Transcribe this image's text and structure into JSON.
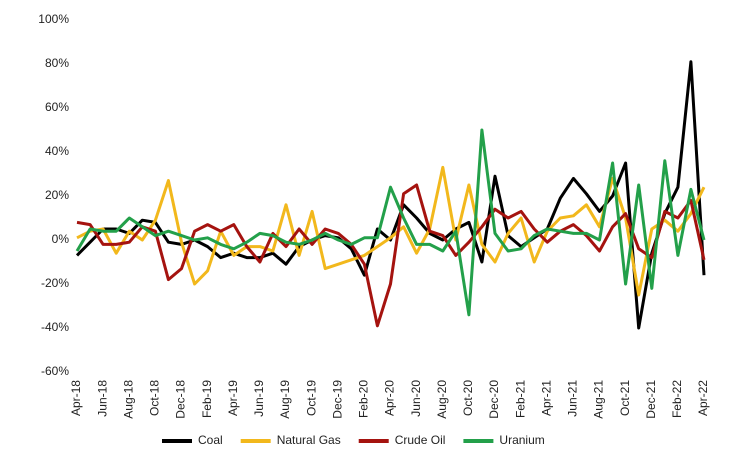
{
  "chart_data": {
    "type": "line",
    "categories": [
      "Apr-18",
      null,
      "Jun-18",
      null,
      "Aug-18",
      null,
      "Oct-18",
      null,
      "Dec-18",
      null,
      "Feb-19",
      null,
      "Apr-19",
      null,
      "Jun-19",
      null,
      "Aug-19",
      null,
      "Oct-19",
      null,
      "Dec-19",
      null,
      "Feb-20",
      null,
      "Apr-20",
      null,
      "Jun-20",
      null,
      "Aug-20",
      null,
      "Oct-20",
      null,
      "Dec-20",
      null,
      "Feb-21",
      null,
      "Apr-21",
      null,
      "Jun-21",
      null,
      "Aug-21",
      null,
      "Oct-21",
      null,
      "Dec-21",
      null,
      "Feb-22",
      null,
      "Apr-22"
    ],
    "series": [
      {
        "name": "Coal",
        "color": "#000000",
        "values": [
          -7,
          -1,
          5,
          5,
          3,
          9,
          8,
          -1,
          -2,
          0,
          -3,
          -8,
          -6,
          -8,
          -8,
          -6,
          -11,
          -3,
          0,
          2,
          1,
          -4,
          -16,
          5,
          0,
          16,
          10,
          3,
          0,
          5,
          8,
          -10,
          29,
          2,
          -3,
          1,
          5,
          19,
          28,
          21,
          13,
          20,
          35,
          -40,
          -6,
          12,
          24,
          81,
          -16
        ]
      },
      {
        "name": "Natural Gas",
        "color": "#f2b81c",
        "values": [
          1,
          4,
          5,
          -6,
          4,
          0,
          9,
          27,
          -1,
          -20,
          -14,
          4,
          -7,
          -3,
          -3,
          -5,
          16,
          -7,
          13,
          -13,
          -11,
          -9,
          -7,
          -3,
          1,
          6,
          -6,
          5,
          33,
          0,
          25,
          -2,
          -10,
          3,
          10,
          -10,
          4,
          10,
          11,
          16,
          6,
          28,
          10,
          -25,
          5,
          9,
          4,
          12,
          24
        ]
      },
      {
        "name": "Crude Oil",
        "color": "#a5130f",
        "values": [
          8,
          7,
          -2,
          -2,
          -1,
          6,
          4,
          -18,
          -13,
          4,
          7,
          4,
          7,
          -3,
          -10,
          3,
          -3,
          5,
          -2,
          5,
          3,
          -2,
          -11,
          -39,
          -20,
          21,
          25,
          4,
          2,
          -7,
          -1,
          6,
          14,
          10,
          13,
          5,
          -1,
          4,
          7,
          2,
          -5,
          6,
          12,
          -4,
          -8,
          13,
          10,
          18,
          -9
        ]
      },
      {
        "name": "Uranium",
        "color": "#23a04a",
        "values": [
          -5,
          5,
          4,
          4,
          10,
          6,
          2,
          4,
          2,
          0,
          1,
          -2,
          -4,
          -1,
          3,
          2,
          -1,
          -2,
          0,
          3,
          0,
          -2,
          1,
          1,
          24,
          10,
          -2,
          -2,
          -5,
          4,
          -34,
          50,
          3,
          -5,
          -4,
          2,
          5,
          4,
          3,
          3,
          0,
          35,
          -20,
          25,
          -22,
          36,
          -7,
          23,
          0
        ]
      }
    ],
    "ylim": [
      -60,
      100
    ],
    "yticks": [
      {
        "value": -60,
        "label": "-60%"
      },
      {
        "value": -40,
        "label": "-40%"
      },
      {
        "value": -20,
        "label": "-20%"
      },
      {
        "value": 0,
        "label": "0%"
      },
      {
        "value": 20,
        "label": "20%"
      },
      {
        "value": 40,
        "label": "40%"
      },
      {
        "value": 60,
        "label": "60%"
      },
      {
        "value": 80,
        "label": "80%"
      },
      {
        "value": 100,
        "label": "100%"
      }
    ],
    "grid": false,
    "legend": "bottom"
  }
}
